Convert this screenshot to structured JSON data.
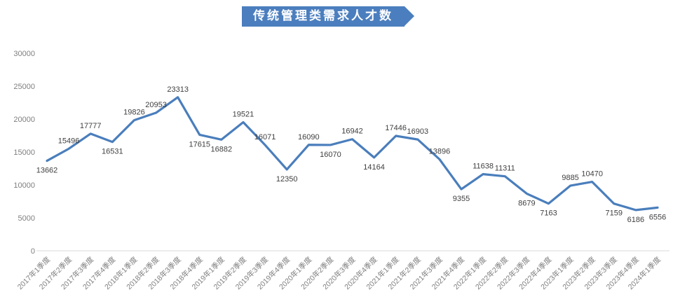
{
  "title": {
    "text": "传统管理类需求人才数"
  },
  "colors": {
    "banner": "#4B7EBE",
    "banner_text": "#FFFFFF",
    "line": "#4A7EBC",
    "axis_label": "#7F7F7F",
    "data_label": "#3F3F3F",
    "baseline": "#D9D9D9"
  },
  "chart_data": {
    "type": "line",
    "title": "传统管理类需求人才数",
    "categories": [
      "2017年1季度",
      "2017年2季度",
      "2017年3季度",
      "2017年4季度",
      "2018年1季度",
      "2018年2季度",
      "2018年3季度",
      "2018年4季度",
      "2019年1季度",
      "2019年2季度",
      "2019年3季度",
      "2019年4季度",
      "2020年1季度",
      "2020年2季度",
      "2020年3季度",
      "2020年4季度",
      "2021年1季度",
      "2021年2季度",
      "2021年3季度",
      "2021年4季度",
      "2022年1季度",
      "2022年2季度",
      "2022年3季度",
      "2022年4季度",
      "2023年1季度",
      "2023年2季度",
      "2023年3季度",
      "2023年4季度",
      "2024年1季度"
    ],
    "values": [
      13662,
      15496,
      17777,
      16531,
      19826,
      20953,
      23313,
      17615,
      16882,
      19521,
      16071,
      12350,
      16090,
      16070,
      16942,
      14164,
      17446,
      16903,
      13896,
      9355,
      11638,
      11311,
      8679,
      7163,
      9885,
      10470,
      7159,
      6186,
      6556
    ],
    "label_side": [
      "below",
      "above",
      "above",
      "below",
      "above",
      "above",
      "above",
      "below",
      "below",
      "above",
      "above",
      "below",
      "above",
      "below",
      "above",
      "below",
      "above",
      "above",
      "above",
      "below",
      "above",
      "above",
      "below",
      "below",
      "above",
      "above",
      "below",
      "below",
      "below"
    ],
    "xlabel": "",
    "ylabel": "",
    "ylim": [
      0,
      30000
    ],
    "ytick_step": 5000,
    "grid": false,
    "legend": "none",
    "data_labels": true,
    "x_label_rotation": 45
  }
}
